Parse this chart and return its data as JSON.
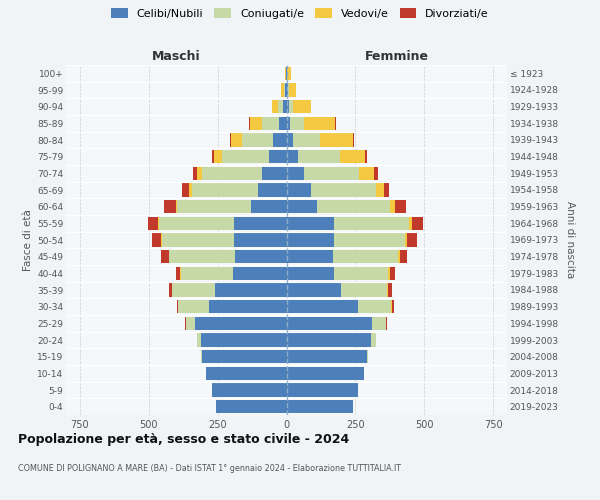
{
  "age_groups": [
    "0-4",
    "5-9",
    "10-14",
    "15-19",
    "20-24",
    "25-29",
    "30-34",
    "35-39",
    "40-44",
    "45-49",
    "50-54",
    "55-59",
    "60-64",
    "65-69",
    "70-74",
    "75-79",
    "80-84",
    "85-89",
    "90-94",
    "95-99",
    "100+"
  ],
  "birth_years": [
    "2019-2023",
    "2014-2018",
    "2009-2013",
    "2004-2008",
    "1999-2003",
    "1994-1998",
    "1989-1993",
    "1984-1988",
    "1979-1983",
    "1974-1978",
    "1969-1973",
    "1964-1968",
    "1959-1963",
    "1954-1958",
    "1949-1953",
    "1944-1948",
    "1939-1943",
    "1934-1938",
    "1929-1933",
    "1924-1928",
    "≤ 1923"
  ],
  "maschi": {
    "celibi": [
      255,
      270,
      292,
      308,
      312,
      332,
      280,
      258,
      195,
      188,
      192,
      192,
      128,
      102,
      88,
      62,
      48,
      28,
      14,
      5,
      2
    ],
    "coniugati": [
      0,
      0,
      0,
      2,
      12,
      32,
      112,
      158,
      188,
      238,
      260,
      272,
      268,
      242,
      218,
      172,
      112,
      62,
      18,
      5,
      1
    ],
    "vedovi": [
      0,
      0,
      0,
      0,
      0,
      0,
      1,
      1,
      2,
      2,
      3,
      3,
      5,
      8,
      18,
      30,
      40,
      42,
      20,
      10,
      3
    ],
    "divorziati": [
      0,
      0,
      0,
      0,
      2,
      4,
      5,
      8,
      16,
      26,
      32,
      36,
      42,
      26,
      15,
      8,
      5,
      3,
      1,
      0,
      0
    ]
  },
  "femmine": {
    "nubili": [
      242,
      260,
      282,
      292,
      308,
      312,
      258,
      198,
      172,
      168,
      172,
      172,
      112,
      88,
      62,
      42,
      22,
      12,
      8,
      4,
      2
    ],
    "coniugate": [
      0,
      0,
      0,
      2,
      15,
      48,
      122,
      168,
      198,
      238,
      258,
      272,
      262,
      238,
      202,
      152,
      98,
      52,
      15,
      4,
      1
    ],
    "vedove": [
      0,
      0,
      0,
      0,
      0,
      0,
      2,
      2,
      5,
      5,
      8,
      10,
      18,
      28,
      55,
      92,
      122,
      112,
      65,
      28,
      15
    ],
    "divorziate": [
      0,
      0,
      0,
      0,
      2,
      5,
      8,
      15,
      20,
      28,
      36,
      42,
      40,
      18,
      12,
      6,
      3,
      2,
      1,
      0,
      0
    ]
  },
  "colors": {
    "celibi_nubili": "#4d7fba",
    "coniugati": "#c8d9a8",
    "vedovi": "#f5c842",
    "divorziati": "#c0392b"
  },
  "xlim": 800,
  "title": "Popolazione per età, sesso e stato civile - 2024",
  "subtitle": "COMUNE DI POLIGNANO A MARE (BA) - Dati ISTAT 1° gennaio 2024 - Elaborazione TUTTITALIA.IT",
  "ylabel_left": "Fasce di età",
  "ylabel_right": "Anni di nascita",
  "xlabel_left": "Maschi",
  "xlabel_right": "Femmine",
  "bg_color": "#f0f4f7",
  "plot_bg": "#f5f8fa"
}
